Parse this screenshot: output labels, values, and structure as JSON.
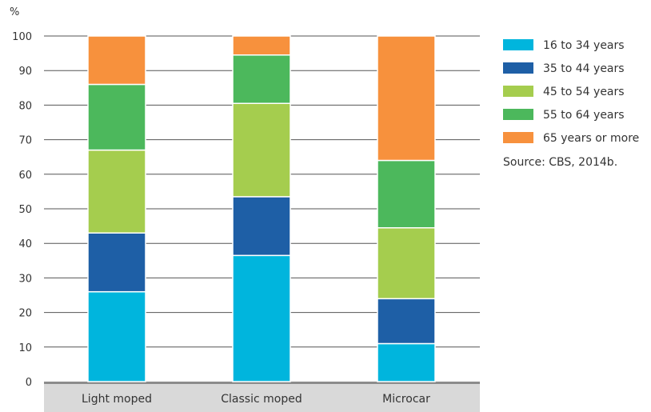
{
  "chart_data": {
    "type": "bar",
    "stacked": true,
    "ylabel": "%",
    "ylim": [
      0,
      100
    ],
    "yticks": [
      0,
      10,
      20,
      30,
      40,
      50,
      60,
      70,
      80,
      90,
      100
    ],
    "grid": true,
    "legend_position": "right",
    "categories": [
      "Light moped",
      "Classic moped",
      "Microcar"
    ],
    "series": [
      {
        "name": "16 to 34 years",
        "color": "#00b5dd",
        "values": [
          26,
          36.5,
          11
        ]
      },
      {
        "name": "35 to 44 years",
        "color": "#1e5fa6",
        "values": [
          17,
          17,
          13
        ]
      },
      {
        "name": "45 to 54 years",
        "color": "#a5cd4e",
        "values": [
          24,
          27,
          20.5
        ]
      },
      {
        "name": "55 to 64 years",
        "color": "#4cb85c",
        "values": [
          19,
          14,
          19.5
        ]
      },
      {
        "name": "65 years or more",
        "color": "#f7913d",
        "values": [
          14,
          5.5,
          36
        ]
      }
    ],
    "source_note": "Source: CBS, 2014b."
  }
}
